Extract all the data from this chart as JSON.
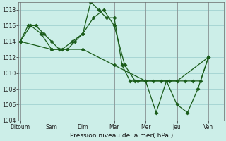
{
  "background_color": "#cceee8",
  "grid_color": "#99cccc",
  "line_color": "#1a5c1a",
  "ylim": [
    1004,
    1019
  ],
  "yticks": [
    1004,
    1006,
    1008,
    1010,
    1012,
    1014,
    1016,
    1018
  ],
  "xlabel": "Pression niveau de la mer( hPa )",
  "day_labels": [
    "Ditoum",
    "Sam",
    "Dim",
    "Mar",
    "Mer",
    "Jeu",
    "Ven"
  ],
  "day_positions": [
    0,
    2,
    4,
    6,
    8,
    10,
    12
  ],
  "xlim": [
    -0.1,
    13.0
  ],
  "series1_x": [
    0,
    0.5,
    1,
    1.5,
    2,
    2.5,
    3,
    3.5,
    4,
    4.5,
    5,
    5.5,
    6,
    6.5,
    7,
    7.5,
    8,
    8.5,
    9,
    9.5,
    10,
    10.5,
    11,
    11.5,
    12
  ],
  "series1": [
    1014,
    1016,
    1016,
    1015,
    1014,
    1013,
    1013,
    1014,
    1015,
    1019,
    1018,
    1017,
    1017,
    1011,
    1009,
    1009,
    1009,
    1009,
    1009,
    1009,
    1009,
    1009,
    1009,
    1009,
    1012
  ],
  "series2_x": [
    0,
    0.67,
    1.33,
    2,
    2.67,
    3.33,
    4,
    4.67,
    5.33,
    6,
    6.67,
    7.33,
    8,
    8.67,
    9.33,
    10,
    10.67,
    11.33,
    12
  ],
  "series2": [
    1014,
    1016,
    1015,
    1013,
    1013,
    1014,
    1015,
    1017,
    1018,
    1016,
    1011,
    1009,
    1009,
    1005,
    1009,
    1006,
    1005,
    1008,
    1012
  ],
  "series3_x": [
    0,
    2,
    4,
    6,
    8,
    10,
    12
  ],
  "series3": [
    1014,
    1013,
    1013,
    1011,
    1009,
    1009,
    1012
  ]
}
